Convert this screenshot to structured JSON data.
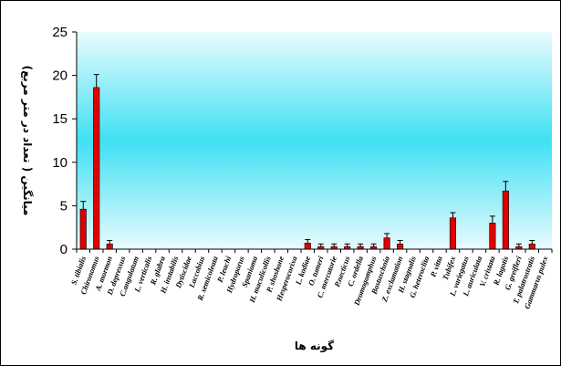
{
  "chart_data": {
    "type": "bar",
    "categories": [
      "S. tibialis",
      "Chironomus",
      "A. mormon",
      "D. depressus",
      "C.angulatum",
      "L. verticalis",
      "R. glabra",
      "H. instabilis",
      "Dytiscidae",
      "Laccobius",
      "R. semicoleata",
      "P. leachi",
      "Hydroporus",
      "Spanioma",
      "H. maculicollis",
      "P. shoshone",
      "Hesperocorixa",
      "L. kodiae",
      "O. tumeri",
      "C. mercatorie",
      "P.necticus",
      "C. ordella",
      "Dromogomphus",
      "Bostuschnia",
      "Z. exclamation",
      "H. stagnalis",
      "G. heteroclita",
      "P. vitta",
      "Tubifex",
      "L. variegatus",
      "L. auriculata",
      "V. cristata",
      "R. lagotis",
      "G. greifleri",
      "T. palatrostratis",
      "Gammarus pulex"
    ],
    "values": [
      4.6,
      18.6,
      0.6,
      0,
      0,
      0,
      0,
      0,
      0,
      0,
      0,
      0,
      0,
      0,
      0,
      0,
      0,
      0.7,
      0.3,
      0.3,
      0.3,
      0.3,
      0.3,
      1.3,
      0.6,
      0,
      0,
      0,
      3.6,
      0,
      0,
      3.0,
      6.7,
      0.3,
      0.6,
      0
    ],
    "errors": [
      0.9,
      1.5,
      0.4,
      0,
      0,
      0,
      0,
      0,
      0,
      0,
      0,
      0,
      0,
      0,
      0,
      0,
      0,
      0.4,
      0.3,
      0.3,
      0.3,
      0.3,
      0.3,
      0.5,
      0.4,
      0,
      0,
      0,
      0.6,
      0,
      0,
      0.8,
      1.1,
      0.3,
      0.4,
      0
    ],
    "ylim": [
      0,
      25
    ],
    "yticks": [
      0,
      5,
      10,
      15,
      20,
      25
    ],
    "xlabel": "گونه ها",
    "ylabel": "میانگین (  تعداد در متر مربع)",
    "grid": false,
    "legend": "none",
    "colors": {
      "bar": "#e00000",
      "bar_edge": "#000000",
      "plot_bg_top": "#e9fbfe",
      "plot_bg_mid": "#3fe0f3",
      "plot_bg_bottom": "#e9fbfe"
    }
  }
}
